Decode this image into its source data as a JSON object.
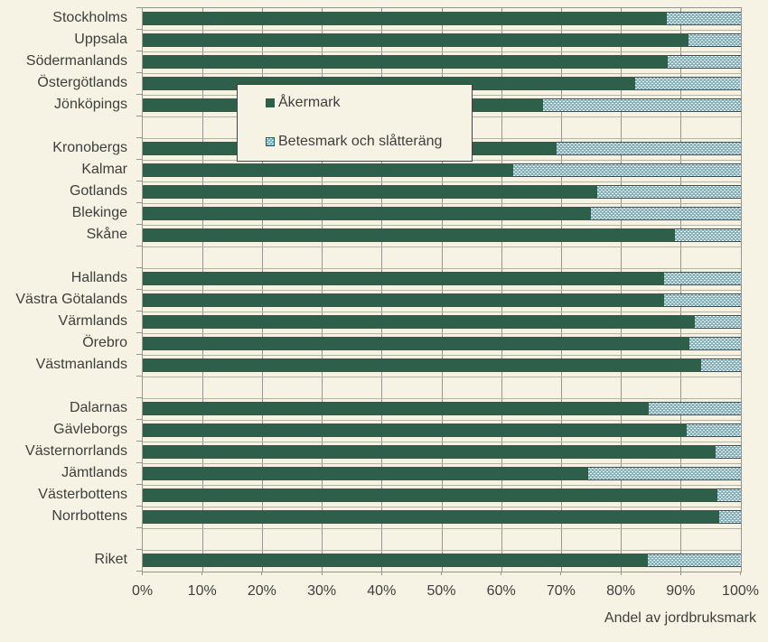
{
  "chart_data": {
    "type": "bar",
    "orientation": "horizontal",
    "stacked": true,
    "title": "",
    "xlabel": "Andel av jordbruksmark",
    "ylabel": "",
    "xlim": [
      0,
      100
    ],
    "x_tick_labels": [
      "0%",
      "10%",
      "20%",
      "30%",
      "40%",
      "50%",
      "60%",
      "70%",
      "80%",
      "90%",
      "100%"
    ],
    "grid": true,
    "legend_position": "upper-left-inside",
    "series_names": [
      "Åkermark",
      "Betesmark och slåtteräng"
    ],
    "unit": "percent of jordbruksmark",
    "groups": [
      {
        "rows": [
          {
            "label": "Stockholms",
            "akermark": 87.6,
            "betesmark": 12.4
          },
          {
            "label": "Uppsala",
            "akermark": 91.2,
            "betesmark": 8.8
          },
          {
            "label": "Södermanlands",
            "akermark": 87.8,
            "betesmark": 12.2
          },
          {
            "label": "Östergötlands",
            "akermark": 82.4,
            "betesmark": 17.6
          },
          {
            "label": "Jönköpings",
            "akermark": 66.9,
            "betesmark": 33.1
          }
        ]
      },
      {
        "rows": [
          {
            "label": "Kronobergs",
            "akermark": 69.2,
            "betesmark": 30.8
          },
          {
            "label": "Kalmar",
            "akermark": 62.0,
            "betesmark": 38.0
          },
          {
            "label": "Gotlands",
            "akermark": 76.0,
            "betesmark": 24.0
          },
          {
            "label": "Blekinge",
            "akermark": 74.9,
            "betesmark": 25.1
          },
          {
            "label": "Skåne",
            "akermark": 89.0,
            "betesmark": 11.0
          }
        ]
      },
      {
        "rows": [
          {
            "label": "Hallands",
            "akermark": 87.2,
            "betesmark": 12.8
          },
          {
            "label": "Västra Götalands",
            "akermark": 87.1,
            "betesmark": 12.9
          },
          {
            "label": "Värmlands",
            "akermark": 92.3,
            "betesmark": 7.7
          },
          {
            "label": "Örebro",
            "akermark": 91.4,
            "betesmark": 8.6
          },
          {
            "label": "Västmanlands",
            "akermark": 93.3,
            "betesmark": 6.7
          }
        ]
      },
      {
        "rows": [
          {
            "label": "Dalarnas",
            "akermark": 84.6,
            "betesmark": 15.4
          },
          {
            "label": "Gävleborgs",
            "akermark": 91.0,
            "betesmark": 9.0
          },
          {
            "label": "Västernorrlands",
            "akermark": 95.8,
            "betesmark": 4.2
          },
          {
            "label": "Jämtlands",
            "akermark": 74.4,
            "betesmark": 25.6
          },
          {
            "label": "Västerbottens",
            "akermark": 96.0,
            "betesmark": 4.0
          },
          {
            "label": "Norrbottens",
            "akermark": 96.3,
            "betesmark": 3.7
          }
        ]
      },
      {
        "rows": [
          {
            "label": "Riket",
            "akermark": 84.5,
            "betesmark": 15.5
          }
        ]
      }
    ],
    "colors": {
      "akermark": "#2d5f4a",
      "betesmark_base": "#7db6ca",
      "betesmark_dot": "#f0fafa",
      "betesmark_border": "#2c554c",
      "background": "#f7f3e4",
      "gridline": "#96958f",
      "text": "#3e3e3e"
    }
  },
  "legend": {
    "items": [
      {
        "label": "Åkermark"
      },
      {
        "label": "Betesmark och slåtteräng"
      }
    ]
  },
  "axis": {
    "x_title": "Andel av jordbruksmark"
  }
}
